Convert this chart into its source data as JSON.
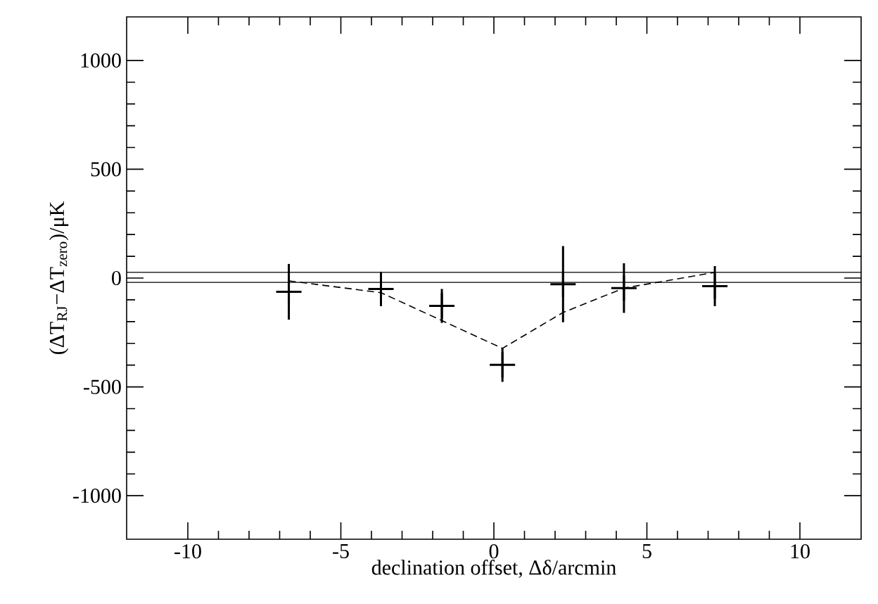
{
  "chart_data": {
    "type": "scatter",
    "xlabel": "declination offset, Δδ/arcmin",
    "ylabel": "(ΔT$_{RJ}$−ΔT$_{zero}$)/μK",
    "xlim": [
      -12,
      12
    ],
    "ylim": [
      -1200,
      1200
    ],
    "xticks": [
      -10,
      -5,
      0,
      5,
      10
    ],
    "yticks": [
      -1000,
      -500,
      0,
      500,
      1000
    ],
    "grid": false,
    "series": [
      {
        "color": "#000000",
        "marker": "cross",
        "x": [
          -6.7,
          -3.69,
          -1.7,
          0.28,
          2.26,
          4.25,
          7.22
        ],
        "values": [
          -63,
          -50,
          -128,
          -399,
          -28,
          -46,
          -37
        ],
        "errors": [
          128,
          79,
          78,
          78,
          175,
          114,
          92
        ]
      },
      {
        "type": "line",
        "color": "#000000",
        "marker": "none",
        "line_style": "dashed",
        "x": [
          -6.7,
          -3.69,
          0.28,
          2.26,
          4.25,
          7.22
        ],
        "values": [
          -13,
          -67,
          -323,
          -158,
          -46,
          26
        ]
      }
    ],
    "ref_lines": [
      {
        "axis": "y",
        "value": 26,
        "color": "#000000",
        "line_style": "solid"
      },
      {
        "axis": "y",
        "value": -20,
        "color": "#000000",
        "line_style": "solid"
      }
    ]
  }
}
